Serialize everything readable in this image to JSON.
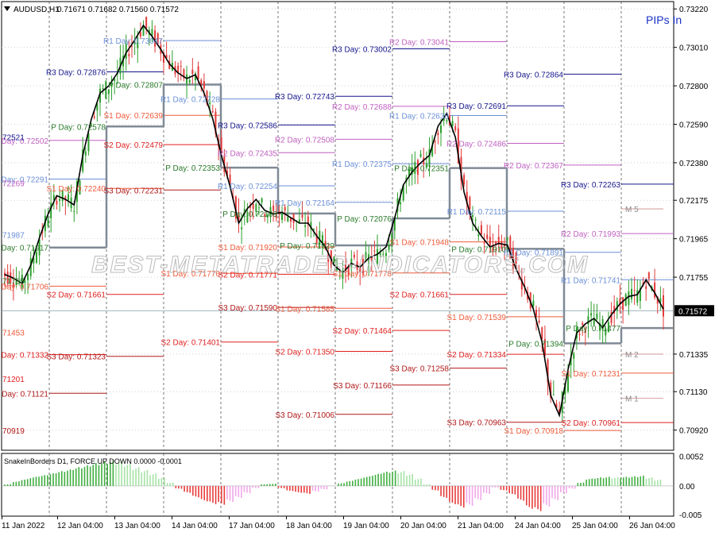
{
  "header": {
    "symbol_timeframe": "AUDUSD,H1",
    "ohlc": "0.71671 0.71682 0.71560 0.71572",
    "pips_label": "PIPs In"
  },
  "watermark": "BEST-METATRADER-INDICATORS.COM",
  "current_price": "0.71572",
  "colors": {
    "bull": "#2da02d",
    "bear": "#e23b3b",
    "ma": "#000000",
    "pivot": "#7f8a96",
    "r3": "#14148c",
    "r2": "#c060c0",
    "r1": "#6a8fd8",
    "p": "#2a7a2a",
    "s1": "#ee5a3a",
    "s2": "#e02020",
    "s3": "#b01818"
  },
  "chart_data": [
    {
      "type": "candlestick",
      "title": "AUDUSD,H1",
      "ylim": [
        0.7081,
        0.7326
      ],
      "y_ticks": [
        "0.73220",
        "0.73010",
        "0.72800",
        "0.72590",
        "0.72380",
        "0.72175",
        "0.71965",
        "0.71755",
        "0.71335",
        "0.71130",
        "0.70920"
      ],
      "x_ticks": [
        "11 Jan 2022",
        "12 Jan 04:00",
        "13 Jan 04:00",
        "14 Jan 04:00",
        "17 Jan 04:00",
        "18 Jan 04:00",
        "19 Jan 04:00",
        "20 Jan 04:00",
        "21 Jan 04:00",
        "24 Jan 04:00",
        "25 Jan 04:00",
        "26 Jan 04:00"
      ],
      "price_path": [
        0.7177,
        0.7175,
        0.7172,
        0.7182,
        0.7197,
        0.721,
        0.722,
        0.7218,
        0.7215,
        0.7242,
        0.7262,
        0.7276,
        0.728,
        0.7287,
        0.7298,
        0.7305,
        0.7313,
        0.7307,
        0.73,
        0.7292,
        0.7287,
        0.7284,
        0.7286,
        0.7276,
        0.7262,
        0.7242,
        0.7225,
        0.7205,
        0.7213,
        0.7218,
        0.7212,
        0.721,
        0.7211,
        0.7208,
        0.7205,
        0.7205,
        0.7198,
        0.7192,
        0.7182,
        0.7178,
        0.7183,
        0.7181,
        0.7186,
        0.7188,
        0.7192,
        0.7208,
        0.7226,
        0.7233,
        0.7238,
        0.7242,
        0.7258,
        0.7265,
        0.7252,
        0.7222,
        0.7205,
        0.7198,
        0.7192,
        0.7194,
        0.7193,
        0.718,
        0.717,
        0.7158,
        0.714,
        0.7111,
        0.71,
        0.7125,
        0.7145,
        0.715,
        0.7153,
        0.7148,
        0.7155,
        0.7161,
        0.7165,
        0.7166,
        0.7174,
        0.7167,
        0.7158
      ],
      "pivot_days": [
        {
          "r3": "",
          "r2": "0.72502",
          "r1": "0.72291",
          "p": "0.71917",
          "s1": "0.71706",
          "s2": "0.71332",
          "s3": "0.71121",
          "r3v": null,
          "r2v": 0.72502,
          "r1v": 0.72291,
          "pv": 0.71917,
          "s1v": 0.71706,
          "s2v": 0.71332,
          "s3v": 0.71121
        },
        {
          "r3": "0.72876",
          "r2": "",
          "r1": "",
          "p": "0.72578",
          "s1": "0.72240",
          "s2": "0.71661",
          "s3": "0.71323",
          "r3v": 0.72876,
          "r2v": null,
          "r1v": null,
          "pv": 0.72578,
          "s1v": 0.7224,
          "s2v": 0.71661,
          "s3v": 0.71323
        },
        {
          "r3": "",
          "r2": "",
          "r1": "0.73047",
          "p": "0.72807",
          "s1": "0.72639",
          "s2": "0.72479",
          "s3": "0.72231",
          "r3v": null,
          "r2v": null,
          "r1v": 0.73047,
          "pv": 0.72807,
          "s1v": 0.72639,
          "s2v": 0.72479,
          "s3v": 0.72231
        },
        {
          "r3": "",
          "r2": "",
          "r1": "0.72728",
          "p": "0.72353",
          "s1": "0.71776",
          "s2": "0.71401",
          "s3": "",
          "r3v": null,
          "r2v": null,
          "r1v": 0.72728,
          "pv": 0.72353,
          "s1v": 0.71776,
          "s2v": 0.71401,
          "s3v": null
        },
        {
          "r3": "0.72586",
          "r2": "0.72435",
          "r1": "0.72254",
          "p": "0.72103",
          "s1": "0.71920",
          "s2": "0.71771",
          "s3": "0.71590",
          "r3v": 0.72586,
          "r2v": 0.72435,
          "r1v": 0.72254,
          "pv": 0.72103,
          "s1v": 0.7192,
          "s2v": 0.71771,
          "s3v": 0.7159
        },
        {
          "r3": "0.72743",
          "r2": "0.72508",
          "r1": "0.72164",
          "p": "0.71929",
          "s1": "0.71585",
          "s2": "0.71350",
          "s3": "0.71006",
          "r3v": 0.72743,
          "r2v": 0.72508,
          "r1v": 0.72164,
          "pv": 0.71929,
          "s1v": 0.71585,
          "s2v": 0.7135,
          "s3v": 0.71006
        },
        {
          "r3": "0.73002",
          "r2": "0.72688",
          "r1": "0.72375",
          "p": "0.72076",
          "s1": "0.71778",
          "s2": "0.71464",
          "s3": "0.71166",
          "r3v": 0.73002,
          "r2v": 0.72688,
          "r1v": 0.72375,
          "pv": 0.72076,
          "s1v": 0.71778,
          "s2v": 0.71464,
          "s3v": 0.71166
        },
        {
          "r3": "",
          "r2": "0.73041",
          "r1": "0.72638",
          "p": "0.72351",
          "s1": "0.71948",
          "s2": "0.71661",
          "s3": "0.71258",
          "r3v": null,
          "r2v": 0.73041,
          "r1v": 0.72638,
          "pv": 0.72351,
          "s1v": 0.71948,
          "s2v": 0.71661,
          "s3v": 0.71258
        },
        {
          "r3": "0.72691",
          "r2": "0.72486",
          "r1": "0.72115",
          "p": "0.71910",
          "s1": "0.71539",
          "s2": "0.71334",
          "s3": "0.70963",
          "r3v": 0.72691,
          "r2v": 0.72486,
          "r1v": 0.72115,
          "pv": 0.7191,
          "s1v": 0.71539,
          "s2v": 0.71334,
          "s3v": 0.70963
        },
        {
          "r3": "0.72864",
          "r2": "0.72367",
          "r1": "0.71891",
          "p": "0.71394",
          "s1": "0.70918",
          "s2": "",
          "s3": "",
          "r3v": 0.72864,
          "r2v": 0.72367,
          "r1v": 0.71891,
          "pv": 0.71394,
          "s1v": 0.70918,
          "s2v": null,
          "s3v": null
        },
        {
          "r3": "0.72263",
          "r2": "0.71993",
          "r1": "0.71741",
          "p": "0.71477",
          "s1": "0.71231",
          "s2": "0.70961",
          "s3": "",
          "r3v": 0.72263,
          "r2v": 0.71993,
          "r1v": 0.71741,
          "pv": 0.71477,
          "s1v": 0.71231,
          "s2v": 0.70961,
          "s3v": null
        }
      ],
      "left_edge_values": [
        "72521",
        "72269",
        "71987",
        "71735",
        "71453",
        "71201",
        "70919"
      ],
      "left_edge_levels": [
        0.72521,
        0.72269,
        0.71987,
        0.71735,
        0.71453,
        0.71201,
        0.70919
      ],
      "m_levels": [
        {
          "label": "M 5",
          "v": 0.72128
        },
        {
          "label": "M 2",
          "v": 0.71335
        },
        {
          "label": "M 1",
          "v": 0.71094
        }
      ]
    },
    {
      "type": "bar",
      "title": "SnakeInBorders D1, FORCE UP DOWN 0.0000 -0.0001",
      "ylim": [
        -0.0053,
        0.0057
      ],
      "y_ticks": [
        "0.0052",
        "0.00",
        "-0.005"
      ],
      "values": [
        0.0003,
        0.0008,
        0.0012,
        0.0016,
        0.0019,
        0.0022,
        0.0026,
        0.0029,
        0.0033,
        0.0036,
        0.004,
        0.0043,
        0.0045,
        0.0044,
        0.004,
        0.0033,
        0.0028,
        0.0022,
        0.0015,
        0.0006,
        -0.0005,
        -0.0012,
        -0.002,
        -0.0027,
        -0.0032,
        -0.0033,
        -0.0028,
        -0.0021,
        -0.0013,
        -0.0004,
        0.0003,
        0.0004,
        -0.0004,
        -0.0009,
        -0.0012,
        -0.0014,
        -0.001,
        -0.0006,
        0.0,
        0.0005,
        0.0009,
        0.0013,
        0.0017,
        0.0021,
        0.0025,
        0.0027,
        0.0026,
        0.0021,
        0.0013,
        0.0003,
        -0.0008,
        -0.0021,
        -0.0032,
        -0.0038,
        -0.0035,
        -0.0025,
        -0.0014,
        -0.0003,
        -0.0008,
        -0.0015,
        -0.0026,
        -0.004,
        -0.0044,
        -0.0036,
        -0.0025,
        -0.0013,
        -0.0005,
        0.0006,
        0.0013,
        0.0015,
        0.0016,
        0.0015,
        0.0016,
        0.0017,
        0.0018,
        0.0015,
        0.0011
      ]
    }
  ]
}
